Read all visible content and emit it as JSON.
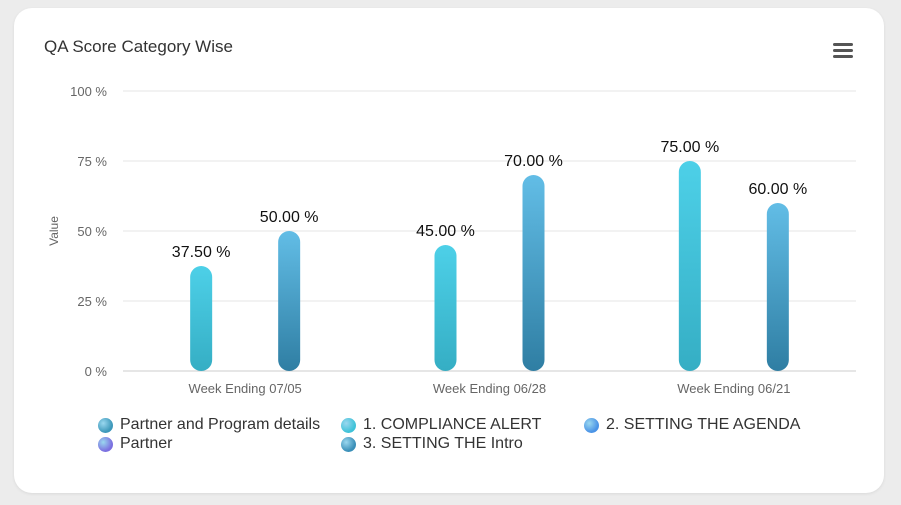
{
  "title": "QA Score Category Wise",
  "menu_icon": "hamburger-menu-icon",
  "chart_data": {
    "type": "bar",
    "title": "QA Score Category Wise",
    "ylabel": "Value",
    "xlabel": "",
    "ylim": [
      0,
      100
    ],
    "yticks": [
      {
        "value": 0,
        "label": "0 %"
      },
      {
        "value": 25,
        "label": "25 %"
      },
      {
        "value": 50,
        "label": "50 %"
      },
      {
        "value": 75,
        "label": "75 %"
      },
      {
        "value": 100,
        "label": "100 %"
      }
    ],
    "categories": [
      "Week Ending 07/05",
      "Week Ending 06/28",
      "Week Ending 06/21"
    ],
    "grid": true,
    "legend_position": "bottom",
    "series": [
      {
        "name": "1. COMPLIANCE ALERT",
        "color_top": "#4dd0e8",
        "color_bottom": "#35aec4",
        "values": [
          37.5,
          45.0,
          75.0
        ],
        "labels": [
          "37.50 %",
          "45.00 %",
          "75.00 %"
        ]
      },
      {
        "name": "3. SETTING THE Intro",
        "color_top": "#62bde6",
        "color_bottom": "#2f7ea3",
        "values": [
          50.0,
          70.0,
          60.0
        ],
        "labels": [
          "50.00 %",
          "70.00 %",
          "60.00 %"
        ]
      }
    ],
    "legend": [
      {
        "name": "Partner and Program details",
        "color": "#3d98ba"
      },
      {
        "name": "1. COMPLIANCE ALERT",
        "color": "#3fc2d8"
      },
      {
        "name": "2. SETTING THE AGENDA",
        "color": "#4a93e6"
      },
      {
        "name": "Partner",
        "color": "#7b6fe0"
      },
      {
        "name": "3. SETTING THE Intro",
        "color": "#3a8fb8"
      }
    ]
  }
}
